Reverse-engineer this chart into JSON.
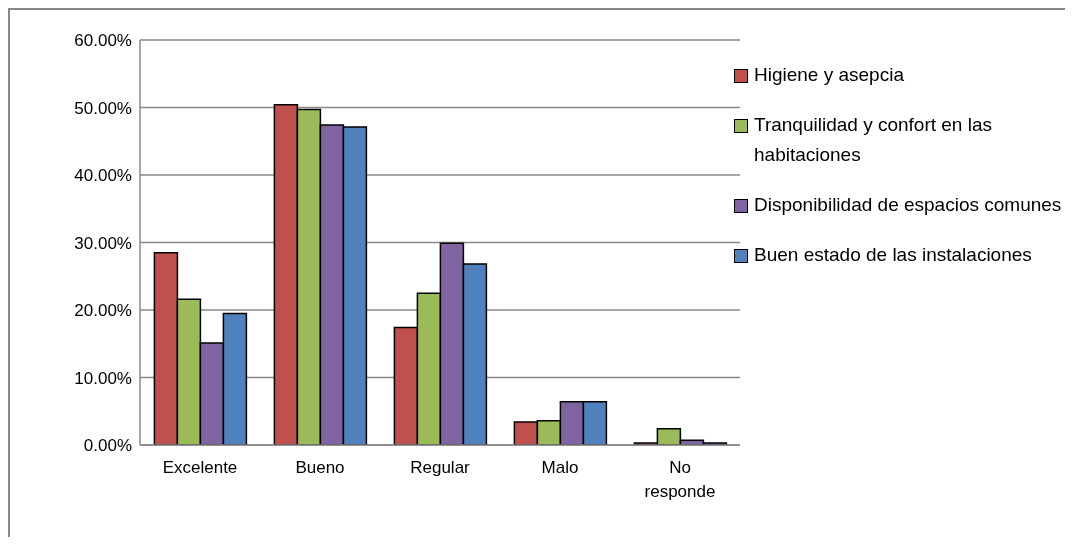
{
  "chart_data": {
    "type": "bar",
    "categories": [
      "Excelente",
      "Bueno",
      "Regular",
      "Malo",
      "No responde"
    ],
    "series": [
      {
        "name": "Higiene y asepcia",
        "color": "#c0504d",
        "values": [
          28.5,
          50.4,
          17.4,
          3.4,
          0.3
        ]
      },
      {
        "name": "Tranquilidad y confort en las habitaciones",
        "color": "#9bbb59",
        "values": [
          21.6,
          49.7,
          22.5,
          3.6,
          2.4
        ]
      },
      {
        "name": "Disponibilidad de espacios comunes",
        "color": "#8064a2",
        "values": [
          15.1,
          47.4,
          29.9,
          6.4,
          0.7
        ]
      },
      {
        "name": "Buen estado de las instalaciones",
        "color": "#4f81bd",
        "values": [
          19.5,
          47.1,
          26.8,
          6.4,
          0.3
        ]
      }
    ],
    "ylim": [
      0,
      60
    ],
    "yticks": [
      {
        "value": 0,
        "label": "0.00%"
      },
      {
        "value": 10,
        "label": "10.00%"
      },
      {
        "value": 20,
        "label": "20.00%"
      },
      {
        "value": 30,
        "label": "30.00%"
      },
      {
        "value": 40,
        "label": "40.00%"
      },
      {
        "value": 50,
        "label": "50.00%"
      },
      {
        "value": 60,
        "label": "60.00%"
      }
    ],
    "grid": "y",
    "legend": "right"
  }
}
